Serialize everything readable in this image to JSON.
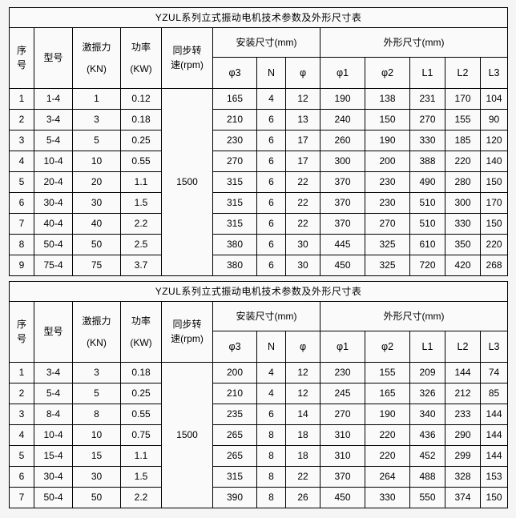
{
  "colors": {
    "page_background": "#f5f5f5",
    "table_background": "#fafafa",
    "border": "#000000",
    "text": "#000000"
  },
  "header": {
    "seq_lines": [
      "序",
      "号"
    ],
    "model": "型号",
    "force_lines": [
      "激振力",
      "(KN)"
    ],
    "power_lines": [
      "功率",
      "(KW)"
    ],
    "speed_lines": [
      "同步转",
      "速(rpm)"
    ],
    "install_group": "安装尺寸(mm)",
    "outline_group": "外形尺寸(mm)",
    "install_cols": [
      "φ3",
      "N",
      "φ"
    ],
    "outline_cols": [
      "φ1",
      "φ2",
      "L1",
      "L2",
      "L3"
    ]
  },
  "tables": [
    {
      "title": "YZUL系列立式振动电机技术参数及外形尺寸表",
      "speed_rpm": "1500",
      "n_col_border_gap_after_row": 4,
      "rows": [
        [
          "1",
          "1-4",
          "1",
          "0.12",
          "165",
          "4",
          "12",
          "190",
          "138",
          "231",
          "170",
          "104"
        ],
        [
          "2",
          "3-4",
          "3",
          "0.18",
          "210",
          "6",
          "13",
          "240",
          "150",
          "270",
          "155",
          "90"
        ],
        [
          "3",
          "5-4",
          "5",
          "0.25",
          "230",
          "6",
          "17",
          "260",
          "190",
          "330",
          "185",
          "120"
        ],
        [
          "4",
          "10-4",
          "10",
          "0.55",
          "270",
          "6",
          "17",
          "300",
          "200",
          "388",
          "220",
          "140"
        ],
        [
          "5",
          "20-4",
          "20",
          "1.1",
          "315",
          "6",
          "22",
          "370",
          "230",
          "490",
          "280",
          "150"
        ],
        [
          "6",
          "30-4",
          "30",
          "1.5",
          "315",
          "6",
          "22",
          "370",
          "230",
          "510",
          "300",
          "170"
        ],
        [
          "7",
          "40-4",
          "40",
          "2.2",
          "315",
          "6",
          "22",
          "370",
          "270",
          "510",
          "330",
          "150"
        ],
        [
          "8",
          "50-4",
          "50",
          "2.5",
          "380",
          "6",
          "30",
          "445",
          "325",
          "610",
          "350",
          "220"
        ],
        [
          "9",
          "75-4",
          "75",
          "3.7",
          "380",
          "6",
          "30",
          "450",
          "325",
          "720",
          "420",
          "268"
        ]
      ]
    },
    {
      "title": "YZUL系列立式振动电机技术参数及外形尺寸表",
      "speed_rpm": "1500",
      "n_col_border_gap_after_row": null,
      "rows": [
        [
          "1",
          "3-4",
          "3",
          "0.18",
          "200",
          "4",
          "12",
          "230",
          "155",
          "209",
          "144",
          "74"
        ],
        [
          "2",
          "5-4",
          "5",
          "0.25",
          "210",
          "4",
          "12",
          "245",
          "165",
          "326",
          "212",
          "85"
        ],
        [
          "3",
          "8-4",
          "8",
          "0.55",
          "235",
          "6",
          "14",
          "270",
          "190",
          "340",
          "233",
          "144"
        ],
        [
          "4",
          "10-4",
          "10",
          "0.75",
          "265",
          "8",
          "18",
          "310",
          "220",
          "436",
          "290",
          "144"
        ],
        [
          "5",
          "15-4",
          "15",
          "1.1",
          "265",
          "8",
          "18",
          "310",
          "220",
          "452",
          "299",
          "144"
        ],
        [
          "6",
          "30-4",
          "30",
          "1.5",
          "315",
          "8",
          "22",
          "370",
          "264",
          "488",
          "328",
          "153"
        ],
        [
          "7",
          "50-4",
          "50",
          "2.2",
          "390",
          "8",
          "26",
          "450",
          "330",
          "550",
          "374",
          "150"
        ]
      ]
    }
  ]
}
